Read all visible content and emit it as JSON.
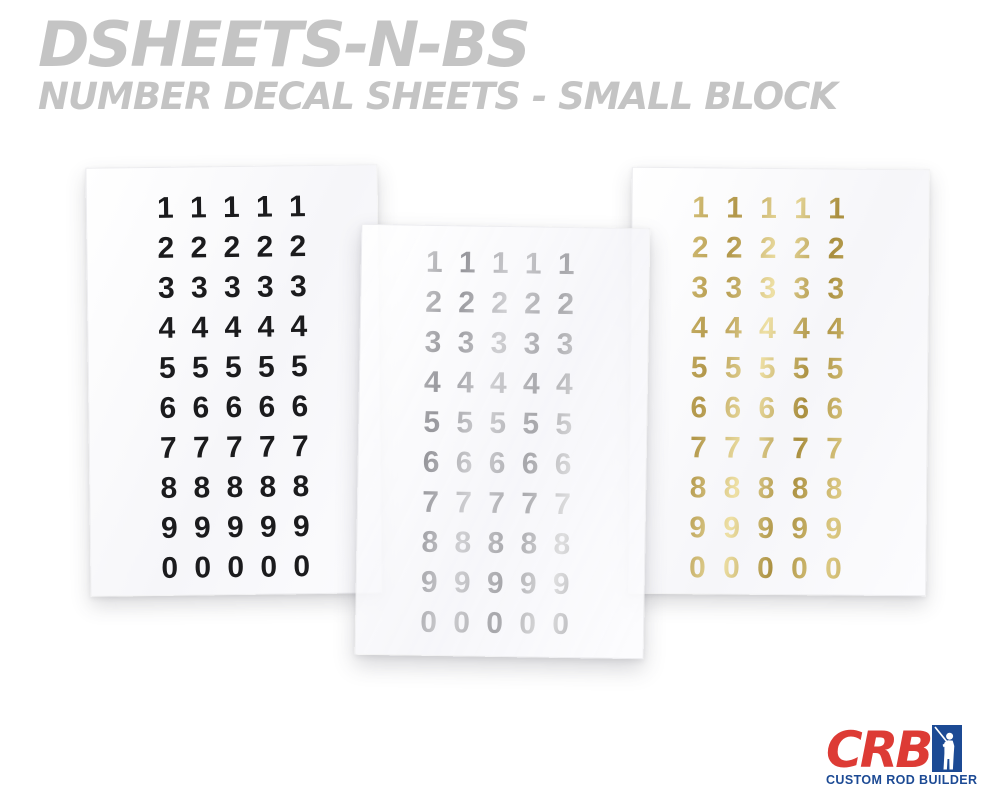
{
  "header": {
    "title": "DSHEETS-N-BS",
    "subtitle": "NUMBER DECAL SHEETS - SMALL BLOCK"
  },
  "digit_rows": [
    "1",
    "2",
    "3",
    "4",
    "5",
    "6",
    "7",
    "8",
    "9",
    "0"
  ],
  "digits_per_row": 5,
  "sheets": [
    {
      "name": "black-number-decal-sheet",
      "ink": "black"
    },
    {
      "name": "silver-number-decal-sheet",
      "ink": "silver"
    },
    {
      "name": "gold-number-decal-sheet",
      "ink": "gold"
    }
  ],
  "logo": {
    "brand": "CRB",
    "tagline": "CUSTOM ROD BUILDER",
    "icon": "fisherman-with-rod-icon"
  },
  "colors": {
    "title-gray": "#c4c4c4",
    "ink-black": "#1b1b1d",
    "silver-a": "#a7a7ab",
    "silver-b": "#dededf",
    "silver-c": "#97979c",
    "silver-d": "#cfcfd2",
    "gold-a": "#a98e3e",
    "gold-b": "#dcc983",
    "gold-c": "#b2974a",
    "gold-d": "#eee0a5",
    "logo-red": "#dd3b35",
    "logo-blue": "#1c4a94"
  }
}
